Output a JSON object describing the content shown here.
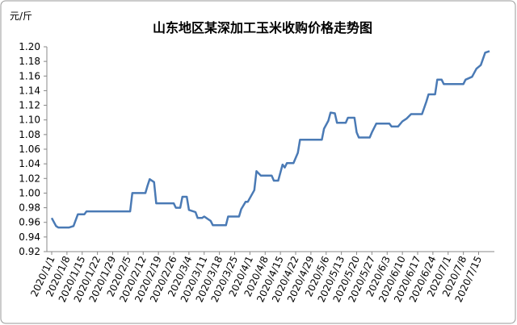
{
  "chart_data": {
    "type": "line",
    "title": "山东地区某深加工玉米收购价格走势图",
    "y_label": "元/斤",
    "x": [
      "2020/1/1",
      "2020/1/3",
      "2020/1/4",
      "2020/1/9",
      "2020/1/11",
      "2020/1/13",
      "2020/1/16",
      "2020/1/17",
      "2020/2/6",
      "2020/2/7",
      "2020/2/13",
      "2020/2/14",
      "2020/2/15",
      "2020/2/17",
      "2020/2/18",
      "2020/2/26",
      "2020/2/27",
      "2020/2/29",
      "2020/3/1",
      "2020/3/3",
      "2020/3/4",
      "2020/3/7",
      "2020/3/8",
      "2020/3/10",
      "2020/3/11",
      "2020/3/13",
      "2020/3/14",
      "2020/3/15",
      "2020/3/21",
      "2020/3/22",
      "2020/3/27",
      "2020/3/28",
      "2020/3/30",
      "2020/3/31",
      "2020/4/3",
      "2020/4/4",
      "2020/4/6",
      "2020/4/11",
      "2020/4/12",
      "2020/4/14",
      "2020/4/16",
      "2020/4/17",
      "2020/4/18",
      "2020/4/21",
      "2020/4/23",
      "2020/4/24",
      "2020/5/4",
      "2020/5/5",
      "2020/5/7",
      "2020/5/8",
      "2020/5/10",
      "2020/5/11",
      "2020/5/15",
      "2020/5/16",
      "2020/5/19",
      "2020/5/20",
      "2020/5/21",
      "2020/5/26",
      "2020/5/27",
      "2020/5/29",
      "2020/6/4",
      "2020/6/5",
      "2020/6/8",
      "2020/6/10",
      "2020/6/12",
      "2020/6/14",
      "2020/6/19",
      "2020/6/21",
      "2020/6/22",
      "2020/6/25",
      "2020/6/26",
      "2020/6/28",
      "2020/6/29",
      "2020/7/8",
      "2020/7/9",
      "2020/7/12",
      "2020/7/14",
      "2020/7/16",
      "2020/7/18",
      "2020/7/20"
    ],
    "series": [
      {
        "color": "#4a7ab5",
        "values": [
          0.966,
          0.955,
          0.953,
          0.953,
          0.955,
          0.971,
          0.971,
          0.975,
          0.975,
          1.0,
          1.0,
          1.01,
          1.019,
          1.015,
          0.986,
          0.986,
          0.98,
          0.98,
          0.995,
          0.995,
          0.977,
          0.974,
          0.966,
          0.966,
          0.968,
          0.964,
          0.962,
          0.956,
          0.956,
          0.968,
          0.968,
          0.978,
          0.988,
          0.988,
          1.004,
          1.03,
          1.024,
          1.024,
          1.017,
          1.017,
          1.039,
          1.035,
          1.041,
          1.041,
          1.055,
          1.073,
          1.073,
          1.088,
          1.099,
          1.11,
          1.109,
          1.096,
          1.096,
          1.103,
          1.103,
          1.083,
          1.076,
          1.076,
          1.083,
          1.095,
          1.095,
          1.091,
          1.091,
          1.098,
          1.102,
          1.108,
          1.108,
          1.125,
          1.135,
          1.135,
          1.155,
          1.155,
          1.149,
          1.149,
          1.155,
          1.159,
          1.17,
          1.175,
          1.192,
          1.194
        ]
      }
    ],
    "xlim": [
      "2020/1/1",
      "2020/7/20"
    ],
    "xticks": [
      "2020/1/1",
      "2020/1/8",
      "2020/1/15",
      "2020/1/22",
      "2020/1/29",
      "2020/2/5",
      "2020/2/12",
      "2020/2/19",
      "2020/2/26",
      "2020/3/4",
      "2020/3/11",
      "2020/3/18",
      "2020/3/25",
      "2020/4/1",
      "2020/4/8",
      "2020/4/15",
      "2020/4/22",
      "2020/4/29",
      "2020/5/6",
      "2020/5/13",
      "2020/5/20",
      "2020/5/27",
      "2020/6/3",
      "2020/6/10",
      "2020/6/17",
      "2020/6/24",
      "2020/7/1",
      "2020/7/8",
      "2020/7/15"
    ],
    "ylim": [
      0.92,
      1.2
    ],
    "yticks": [
      0.92,
      0.94,
      0.96,
      0.98,
      {
        "value": 1.0,
        "label": "1.00"
      },
      1.02,
      1.04,
      1.06,
      1.08,
      {
        "value": 1.1,
        "label": "1.10"
      },
      1.12,
      1.14,
      1.16,
      1.18,
      {
        "value": 1.2,
        "label": "1.20"
      }
    ],
    "grid": false
  }
}
